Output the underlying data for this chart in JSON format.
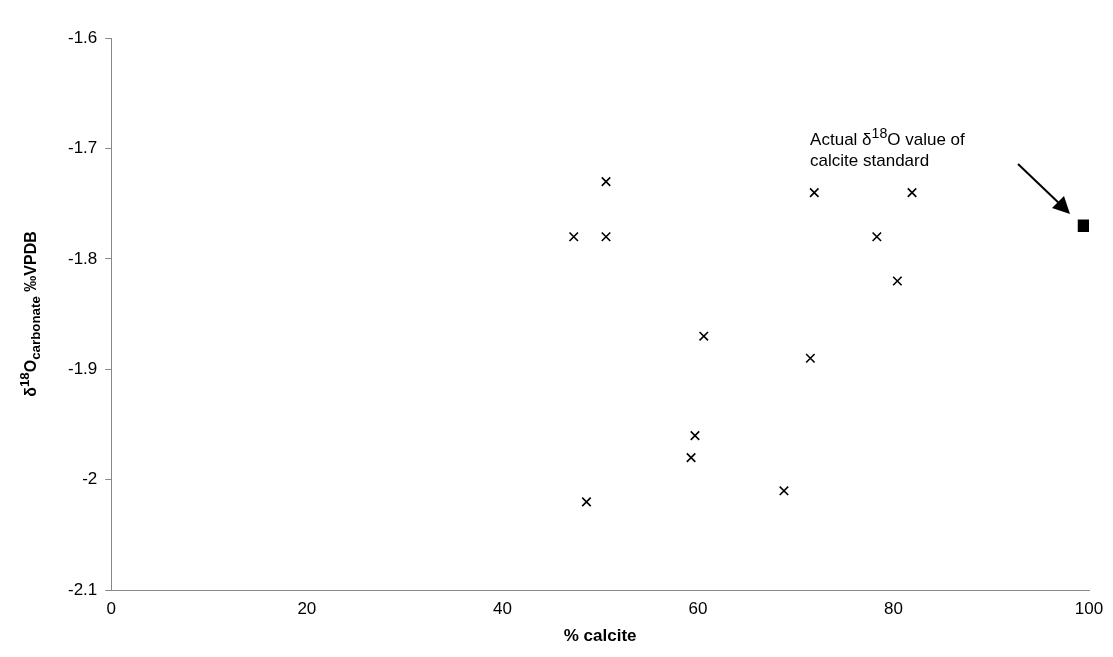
{
  "chart_data": {
    "type": "scatter",
    "xlabel": "% calcite",
    "ylabel": "δ$^{18}$O$_{carbonate}$ ‰VPDB",
    "xlim": [
      0,
      100
    ],
    "xticks": [
      0,
      20,
      40,
      60,
      80,
      100
    ],
    "ylim": [
      -2.1,
      -1.6
    ],
    "yticks": [
      -2.1,
      -2,
      -1.9,
      -1.8,
      -1.7,
      -1.6
    ],
    "grid": false,
    "legend": false,
    "series": [
      {
        "color": "#000000",
        "marker": "cross",
        "x": [
          47.3,
          50.6,
          50.6,
          48.6,
          59.3,
          59.7,
          60.6,
          68.8,
          71.5,
          71.9,
          78.3,
          80.4,
          81.9
        ],
        "values": [
          -1.78,
          -1.73,
          -1.78,
          -2.02,
          -1.98,
          -1.96,
          -1.87,
          -2.01,
          -1.89,
          -1.74,
          -1.78,
          -1.82,
          -1.74
        ]
      },
      {
        "color": "#000000",
        "marker": "square",
        "x": [
          99.5
        ],
        "values": [
          -1.77
        ]
      }
    ],
    "annotations": [
      "Actual δ$^{18}$O value of calcite standard"
    ]
  }
}
